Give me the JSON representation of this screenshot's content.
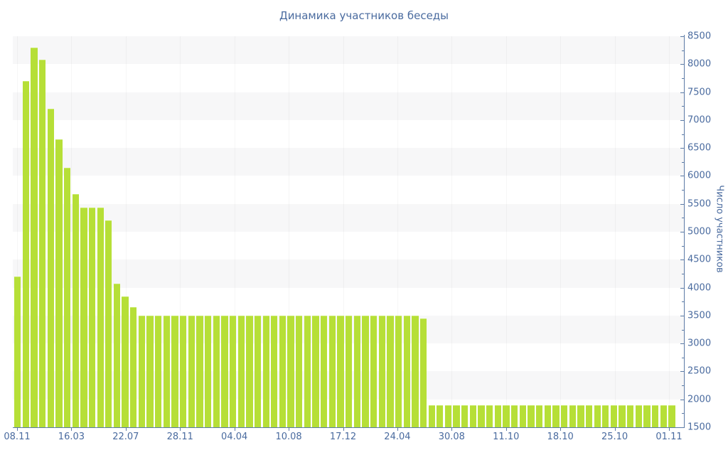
{
  "chart_data": {
    "type": "bar",
    "title": "Динамика участников беседы",
    "xlabel": "",
    "ylabel": "Число участников",
    "x_tick_labels": [
      "08.11",
      "16.03",
      "22.07",
      "28.11",
      "04.04",
      "10.08",
      "17.12",
      "24.04",
      "30.08",
      "11.10",
      "18.10",
      "25.10",
      "01.11"
    ],
    "y_ticks": [
      8500,
      8000,
      7500,
      7000,
      6500,
      6000,
      5500,
      5000,
      4500,
      4000,
      3500,
      3000,
      2500,
      2000,
      1500
    ],
    "ylim": [
      1500,
      8500
    ],
    "y_major_step": 500,
    "y_minor_step": 250,
    "legend_position": "none",
    "grid": "alternating horizontal 500-unit bands, faint vertical lines at date ticks",
    "bar_count": 80,
    "values": [
      4200,
      7700,
      8300,
      8080,
      7200,
      6650,
      6150,
      5670,
      5430,
      5430,
      5430,
      5200,
      4070,
      3840,
      3650,
      3500,
      3500,
      3500,
      3500,
      3500,
      3500,
      3500,
      3500,
      3500,
      3500,
      3500,
      3500,
      3500,
      3500,
      3500,
      3500,
      3500,
      3500,
      3500,
      3500,
      3500,
      3500,
      3500,
      3500,
      3500,
      3500,
      3500,
      3500,
      3500,
      3500,
      3500,
      3500,
      3500,
      3500,
      3450,
      1900,
      1900,
      1900,
      1900,
      1900,
      1900,
      1900,
      1900,
      1900,
      1900,
      1900,
      1900,
      1900,
      1900,
      1900,
      1900,
      1900,
      1900,
      1900,
      1900,
      1900,
      1900,
      1900,
      1900,
      1900,
      1900,
      1900,
      1900,
      1900,
      1900
    ],
    "colors": {
      "bar": "#b6df37",
      "bar_edge": "#c8ea66",
      "axis": "#5b7aa5",
      "labels": "#4a6b9f",
      "band": "#f7f7f8",
      "background": "#ffffff"
    }
  }
}
